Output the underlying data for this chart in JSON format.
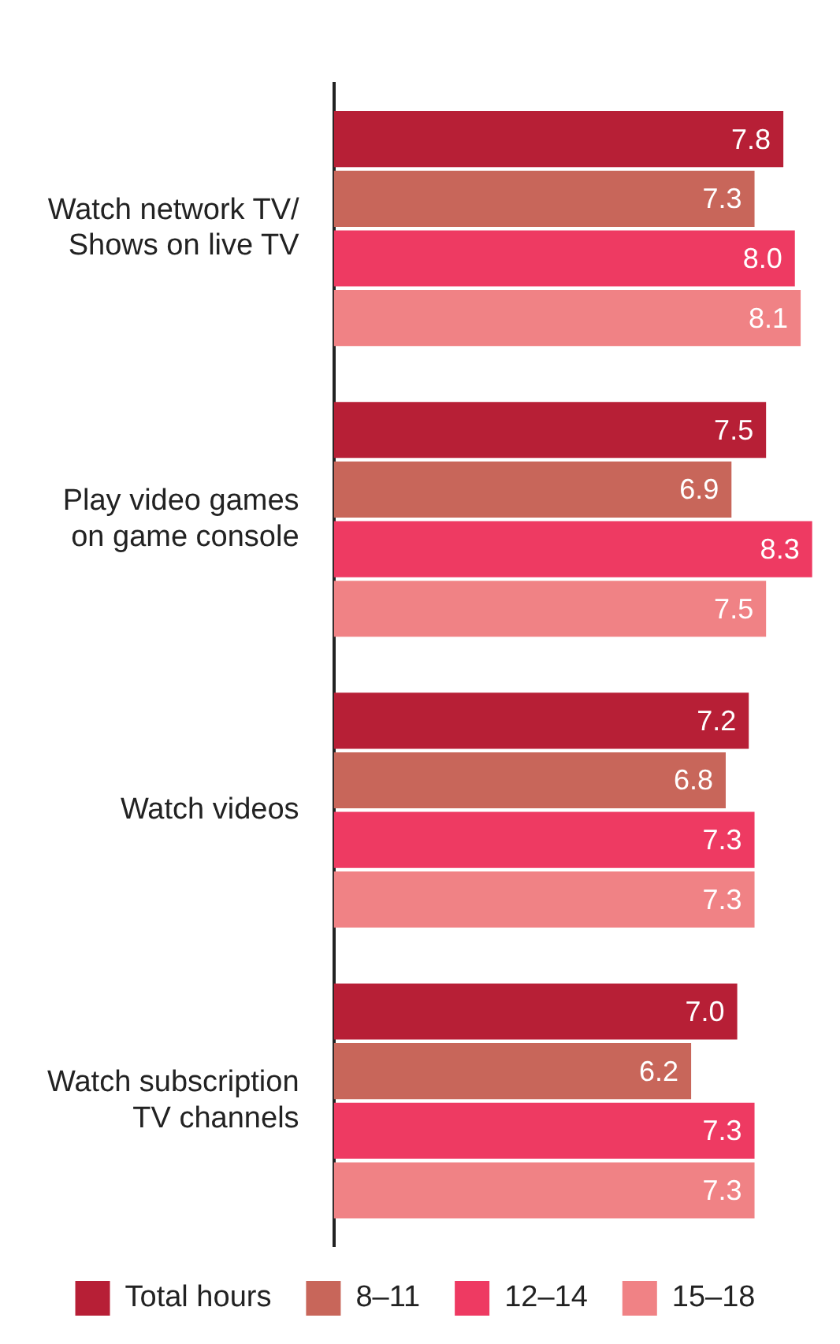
{
  "chart_data": {
    "type": "bar",
    "orientation": "horizontal",
    "categories": [
      "Watch network TV/ Shows on live TV",
      "Play video games on game console",
      "Watch videos",
      "Watch subscription TV channels"
    ],
    "series": [
      {
        "name": "Total hours",
        "color": "#b71f36",
        "values": [
          7.8,
          7.5,
          7.2,
          7.0
        ],
        "value_labels": [
          "7.8",
          "7.5",
          "7.2",
          "7.0"
        ]
      },
      {
        "name": "8–11",
        "color": "#c8665a",
        "values": [
          7.3,
          6.9,
          6.8,
          6.2
        ],
        "value_labels": [
          "7.3",
          "6.9",
          "6.8",
          "6.2"
        ]
      },
      {
        "name": "12–14",
        "color": "#ee3a62",
        "values": [
          8.0,
          8.3,
          7.3,
          7.3
        ],
        "value_labels": [
          "8.0",
          "8.3",
          "7.3",
          "7.3"
        ]
      },
      {
        "name": "15–18",
        "color": "#f08285",
        "values": [
          8.1,
          7.5,
          7.3,
          7.3
        ],
        "value_labels": [
          "8.1",
          "7.5",
          "7.3",
          "7.3"
        ]
      }
    ],
    "xlim": [
      0,
      8.4
    ],
    "tick_labels": "y",
    "grid": false,
    "legend": "bottom"
  }
}
